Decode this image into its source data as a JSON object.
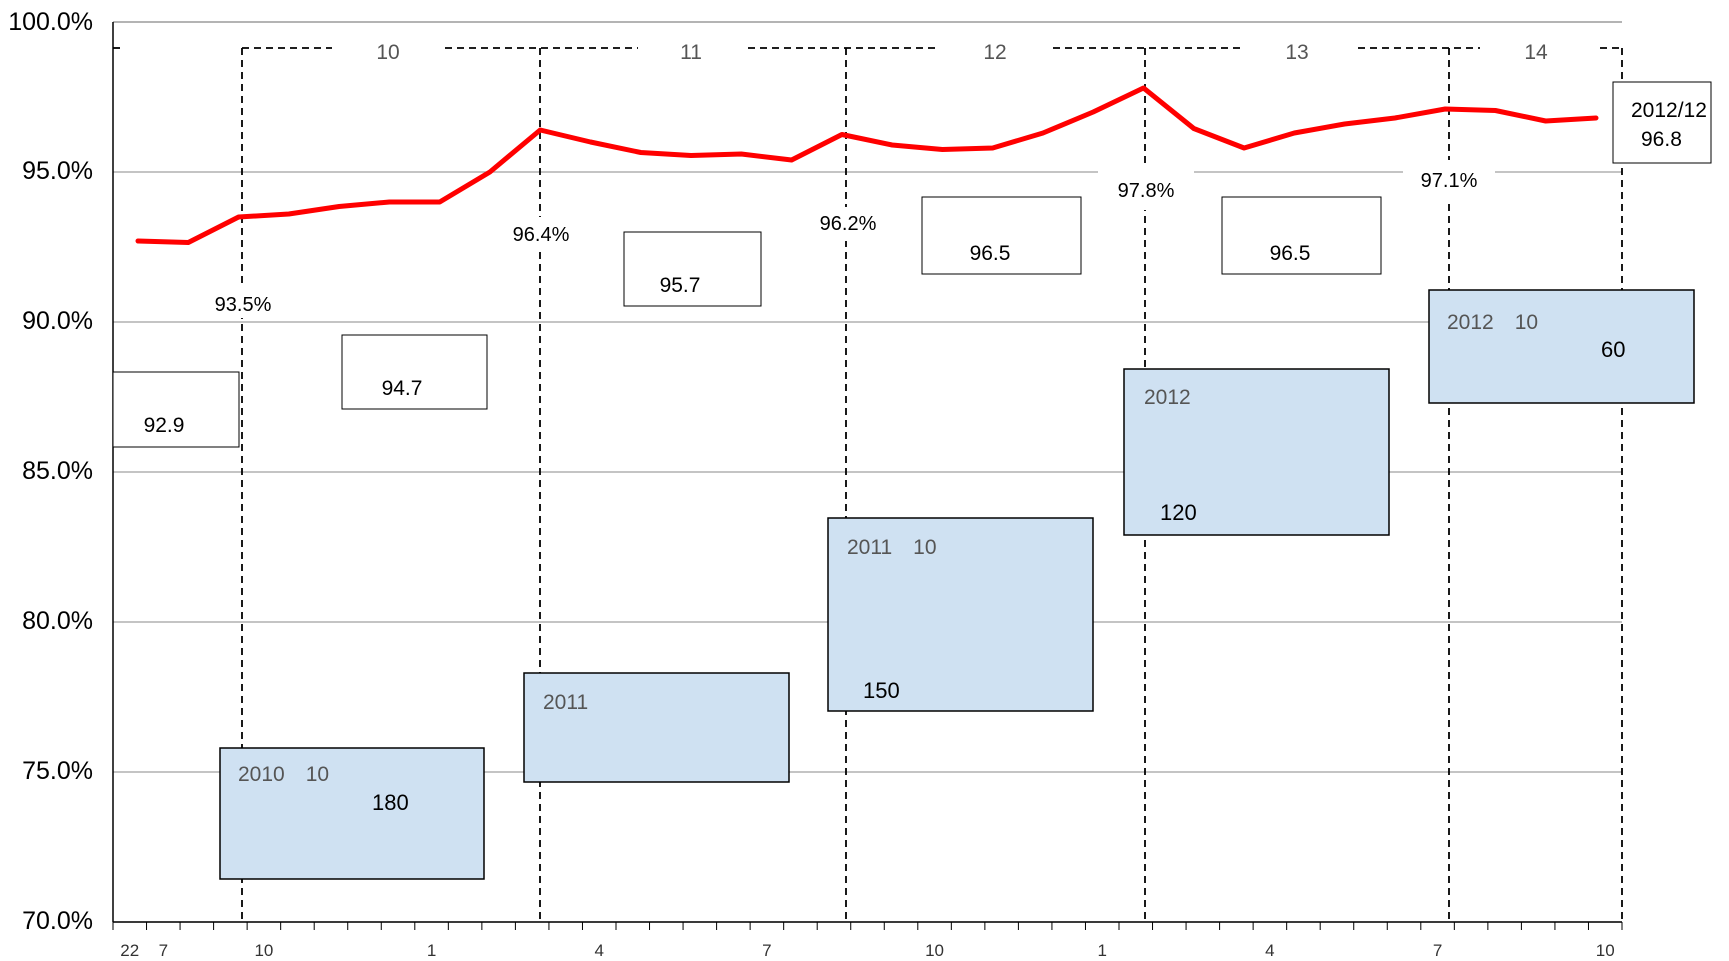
{
  "chart_data": {
    "type": "line",
    "series": [
      {
        "color": "#ff0000",
        "values": [
          92.7,
          92.65,
          93.5,
          93.6,
          93.85,
          94.0,
          94.0,
          95.0,
          96.4,
          96.0,
          95.65,
          95.55,
          95.6,
          95.4,
          96.25,
          95.9,
          95.75,
          95.8,
          96.3,
          97.0,
          97.8,
          96.45,
          95.8,
          96.3,
          96.6,
          96.8,
          97.1,
          97.05,
          96.7,
          96.8
        ]
      }
    ],
    "ylim": [
      70,
      100
    ],
    "yticks": [
      "70.0%",
      "75.0%",
      "80.0%",
      "85.0%",
      "90.0%",
      "95.0%",
      "100.0%"
    ],
    "xticklabels": [
      {
        "i": 0,
        "label": "22"
      },
      {
        "i": 1,
        "label": "7"
      },
      {
        "i": 4,
        "label": "10"
      },
      {
        "i": 9,
        "label": "1"
      },
      {
        "i": 14,
        "label": "4"
      },
      {
        "i": 19,
        "label": "7"
      },
      {
        "i": 24,
        "label": "10"
      },
      {
        "i": 29,
        "label": "1"
      },
      {
        "i": 34,
        "label": "4"
      },
      {
        "i": 39,
        "label": "7"
      },
      {
        "i": 44,
        "label": "10"
      }
    ],
    "fiscal_year_labels": [
      "10",
      "11",
      "12",
      "13",
      "14"
    ],
    "percent_labels": [
      "93.5%",
      "96.4%",
      "96.2%",
      "97.8%",
      "97.1%"
    ],
    "average_boxes": [
      "92.9",
      "94.7",
      "95.7",
      "96.5",
      "96.5"
    ],
    "latest": {
      "period": "2012/12",
      "value": "96.8"
    },
    "event_boxes": [
      {
        "head": "2010　10",
        "value": "180"
      },
      {
        "head": "2011",
        "value": ""
      },
      {
        "head": "2011　10",
        "value": "150"
      },
      {
        "head": "2012",
        "value": "120"
      },
      {
        "head": "2012　10",
        "value": "60"
      }
    ],
    "grid": true
  }
}
